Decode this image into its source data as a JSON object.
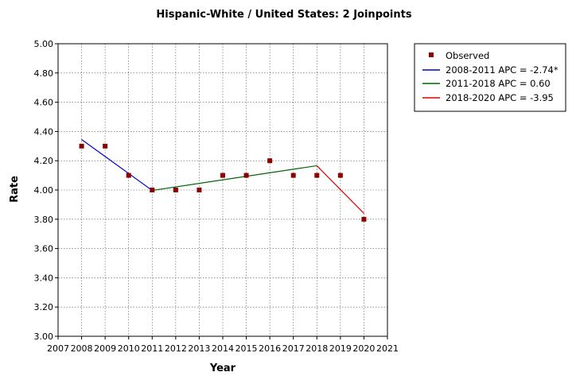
{
  "chart_data": {
    "type": "line",
    "title": "Hispanic-White / United States: 2 Joinpoints",
    "xlabel": "Year",
    "ylabel": "Rate",
    "xlim": [
      2007,
      2021
    ],
    "ylim": [
      3.0,
      5.0
    ],
    "x_ticks": [
      "2007",
      "2008",
      "2009",
      "2010",
      "2011",
      "2012",
      "2013",
      "2014",
      "2015",
      "2016",
      "2017",
      "2018",
      "2019",
      "2020",
      "2021"
    ],
    "y_ticks": [
      "3.00",
      "3.20",
      "3.40",
      "3.60",
      "3.80",
      "4.00",
      "4.20",
      "4.40",
      "4.60",
      "4.80",
      "5.00"
    ],
    "grid": true,
    "legend_position": "right",
    "observed": {
      "name": "Observed",
      "color": "#8b0000",
      "x": [
        2008,
        2009,
        2010,
        2011,
        2012,
        2013,
        2014,
        2015,
        2016,
        2017,
        2018,
        2019,
        2020
      ],
      "y": [
        4.3,
        4.3,
        4.1,
        4.0,
        4.0,
        4.0,
        4.1,
        4.1,
        4.2,
        4.1,
        4.1,
        4.1,
        3.8
      ]
    },
    "series": [
      {
        "name": "2008-2011 APC  = -2.74*",
        "color": "#0000cc",
        "x": [
          2008,
          2011
        ],
        "y": [
          4.345,
          3.997
        ]
      },
      {
        "name": "2011-2018 APC  =  0.60",
        "color": "#006400",
        "x": [
          2011,
          2018
        ],
        "y": [
          3.997,
          4.166
        ]
      },
      {
        "name": "2018-2020 APC  = -3.95",
        "color": "#dd0000",
        "x": [
          2018,
          2020
        ],
        "y": [
          4.166,
          3.84
        ]
      }
    ]
  }
}
